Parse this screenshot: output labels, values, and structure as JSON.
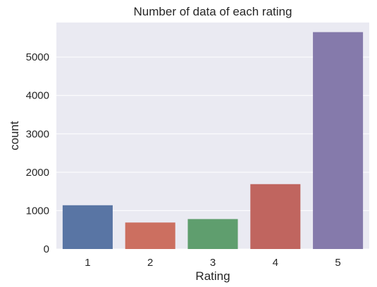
{
  "chart_data": {
    "type": "bar",
    "title": "Number of data of each rating",
    "xlabel": "Rating",
    "ylabel": "count",
    "categories": [
      "1",
      "2",
      "3",
      "4",
      "5"
    ],
    "values": [
      1140,
      690,
      780,
      1690,
      5650
    ],
    "ylim": [
      0,
      5900
    ],
    "yticks": [
      0,
      1000,
      2000,
      3000,
      4000,
      5000
    ],
    "grid": true,
    "bar_colors": [
      "#5975a4",
      "#cc6f60",
      "#5f9e6e",
      "#c0655f",
      "#857aab"
    ],
    "background_color": "#eaeaf2"
  }
}
